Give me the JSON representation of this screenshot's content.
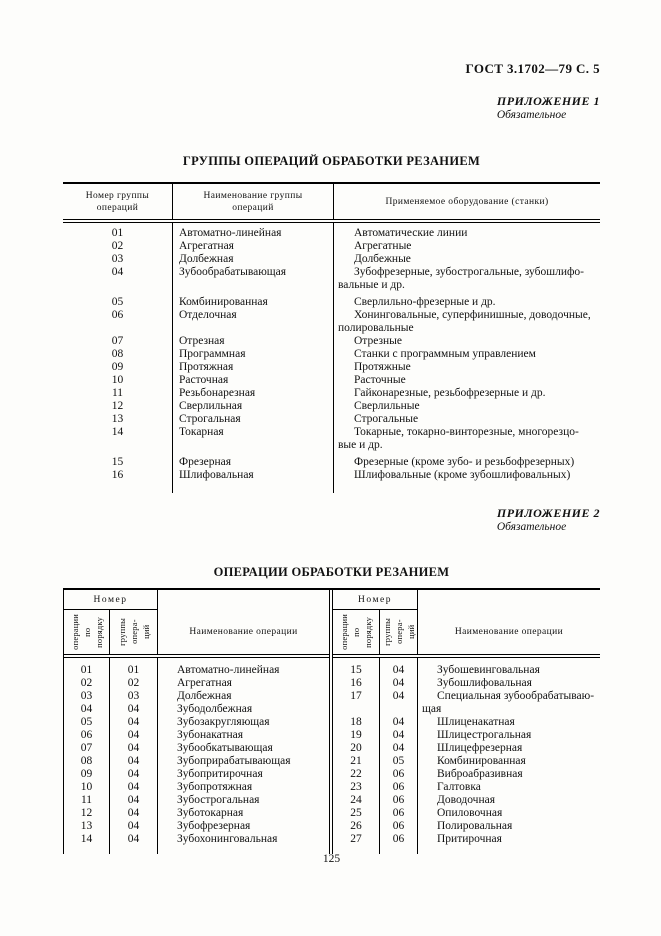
{
  "page": {
    "doc_ref": "ГОСТ  3.1702—79 С. 5",
    "page_number": "125"
  },
  "appendix1": {
    "label": "ПРИЛОЖЕНИЕ 1",
    "note": "Обязательное"
  },
  "appendix2": {
    "label": "ПРИЛОЖЕНИЕ 2",
    "note": "Обязательное"
  },
  "table1": {
    "title": "ГРУППЫ ОПЕРАЦИЙ ОБРАБОТКИ РЕЗАНИЕМ",
    "headers": {
      "col1": "Номер группы\nопераций",
      "col2": "Наименование  группы\nопераций",
      "col3": "Применяемое оборудование (станки)"
    },
    "rows": [
      {
        "num": "01",
        "name": "Автоматно-линейная",
        "equip": "Автоматические линии"
      },
      {
        "num": "02",
        "name": "Агрегатная",
        "equip": "Агрегатные"
      },
      {
        "num": "03",
        "name": "Долбежная",
        "equip": "Долбежные"
      },
      {
        "num": "04",
        "name": "Зубообрабатывающая",
        "equip": "Зубофрезерные, зубострогальные, зубошлифо-\nвальные и др."
      },
      {
        "num": "05",
        "name": "Комбинированная",
        "equip": "Сверлильно-фрезерные и др."
      },
      {
        "num": "06",
        "name": "Отделочная",
        "equip": "Хонинговальные, суперфинишные, доводочные,\nполировальные"
      },
      {
        "num": "07",
        "name": "Отрезная",
        "equip": "Отрезные"
      },
      {
        "num": "08",
        "name": "Программная",
        "equip": "Станки с программным управлением"
      },
      {
        "num": "09",
        "name": "Протяжная",
        "equip": "Протяжные"
      },
      {
        "num": "10",
        "name": "Расточная",
        "equip": "Расточные"
      },
      {
        "num": "11",
        "name": "Резьбонарезная",
        "equip": "Гайконарезные, резьбофрезерные и др."
      },
      {
        "num": "12",
        "name": "Сверлильная",
        "equip": "Сверлильные"
      },
      {
        "num": "13",
        "name": "Строгальная",
        "equip": "Строгальные"
      },
      {
        "num": "14",
        "name": "Токарная",
        "equip": "Токарные, токарно-винторезные, многорезцо-\nвые и др."
      },
      {
        "num": "15",
        "name": "Фрезерная",
        "equip": "Фрезерные (кроме зубо- и резьбофрезерных)"
      },
      {
        "num": "16",
        "name": "Шлифовальная",
        "equip": "Шлифовальные (кроме зубошлифовальных)"
      }
    ]
  },
  "table2": {
    "title": "ОПЕРАЦИИ ОБРАБОТКИ РЕЗАНИЕМ",
    "headers": {
      "number_group": "Номер",
      "col_seq": "операции\nпо\nпорядку",
      "col_grp": "группы\nопера-\nций",
      "col_name": "Наименование операции"
    },
    "left_rows": [
      {
        "seq": "01",
        "grp": "01",
        "name": "Автоматно-линейная"
      },
      {
        "seq": "02",
        "grp": "02",
        "name": "Агрегатная"
      },
      {
        "seq": "03",
        "grp": "03",
        "name": "Долбежная"
      },
      {
        "seq": "04",
        "grp": "04",
        "name": "Зубодолбежная"
      },
      {
        "seq": "05",
        "grp": "04",
        "name": "Зубозакругляющая"
      },
      {
        "seq": "06",
        "grp": "04",
        "name": "Зубонакатная"
      },
      {
        "seq": "07",
        "grp": "04",
        "name": "Зубообкатывающая"
      },
      {
        "seq": "08",
        "grp": "04",
        "name": "Зубоприрабатывающая"
      },
      {
        "seq": "09",
        "grp": "04",
        "name": "Зубопритирочная"
      },
      {
        "seq": "10",
        "grp": "04",
        "name": "Зубопротяжная"
      },
      {
        "seq": "11",
        "grp": "04",
        "name": "Зубострогальная"
      },
      {
        "seq": "12",
        "grp": "04",
        "name": "Зуботокарная"
      },
      {
        "seq": "13",
        "grp": "04",
        "name": "Зубофрезерная"
      },
      {
        "seq": "14",
        "grp": "04",
        "name": "Зубохонинговальная"
      }
    ],
    "right_rows": [
      {
        "seq": "15",
        "grp": "04",
        "name": "Зубошевинговальная"
      },
      {
        "seq": "16",
        "grp": "04",
        "name": "Зубошлифовальная"
      },
      {
        "seq": "17",
        "grp": "04",
        "name": "Специальная зубообрабатываю-\nщая"
      },
      {
        "seq": "18",
        "grp": "04",
        "name": "Шлиценакатная"
      },
      {
        "seq": "19",
        "grp": "04",
        "name": "Шлицестрогальная"
      },
      {
        "seq": "20",
        "grp": "04",
        "name": "Шлицефрезерная"
      },
      {
        "seq": "21",
        "grp": "05",
        "name": "Комбинированная"
      },
      {
        "seq": "22",
        "grp": "06",
        "name": "Виброабразивная"
      },
      {
        "seq": "23",
        "grp": "06",
        "name": "Галтовка"
      },
      {
        "seq": "24",
        "grp": "06",
        "name": "Доводочная"
      },
      {
        "seq": "25",
        "grp": "06",
        "name": "Опиловочная"
      },
      {
        "seq": "26",
        "grp": "06",
        "name": "Полировальная"
      },
      {
        "seq": "27",
        "grp": "06",
        "name": "Притирочная"
      }
    ]
  }
}
